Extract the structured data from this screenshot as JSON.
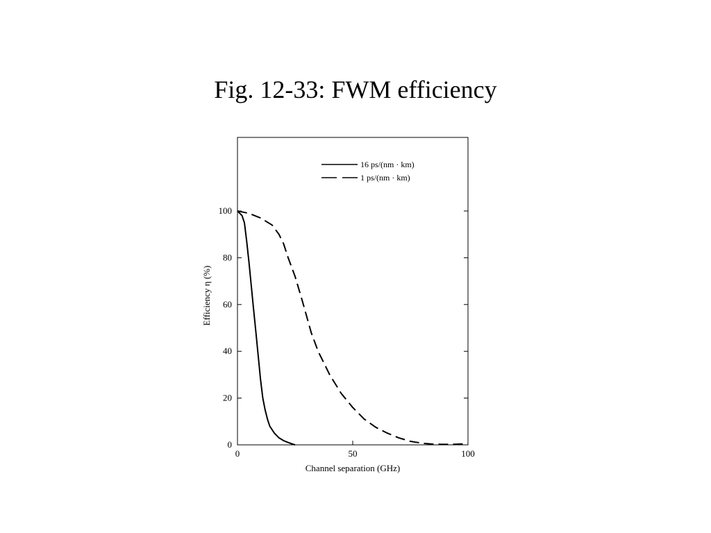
{
  "slide": {
    "title": "Fig. 12-33: FWM efficiency"
  },
  "chart_data": {
    "type": "line",
    "title": "",
    "xlabel": "Channel separation (GHz)",
    "ylabel": "Efficiency η (%)",
    "xlim": [
      0,
      100
    ],
    "ylim": [
      0,
      133
    ],
    "x_ticks": [
      0,
      50,
      100
    ],
    "y_ticks": [
      0,
      20,
      40,
      60,
      80,
      100
    ],
    "grid": false,
    "legend_position": "top-right",
    "series": [
      {
        "name": "16 ps/(nm · km)",
        "style": "solid",
        "color": "#000000",
        "x": [
          0,
          2,
          3,
          4,
          5,
          6,
          7,
          8,
          9,
          10,
          11,
          12,
          13,
          14,
          16,
          18,
          20,
          22,
          24,
          25
        ],
        "y": [
          100,
          98,
          95,
          87,
          78,
          68,
          58,
          48,
          38,
          28,
          20,
          15,
          11,
          8,
          5,
          3,
          1.8,
          1,
          0.3,
          0
        ]
      },
      {
        "name": "1 ps/(nm · km)",
        "style": "dashed",
        "color": "#000000",
        "x": [
          0,
          5,
          10,
          15,
          18,
          20,
          22,
          25,
          28,
          30,
          32,
          35,
          40,
          45,
          50,
          55,
          60,
          65,
          70,
          75,
          80,
          85,
          90,
          95,
          100
        ],
        "y": [
          100,
          99,
          97,
          94,
          90,
          86,
          80,
          72,
          62,
          55,
          48,
          40,
          30,
          22,
          16,
          11,
          7.5,
          5,
          3,
          1.5,
          0.7,
          0.3,
          0.2,
          0.3,
          0.5
        ]
      }
    ]
  }
}
